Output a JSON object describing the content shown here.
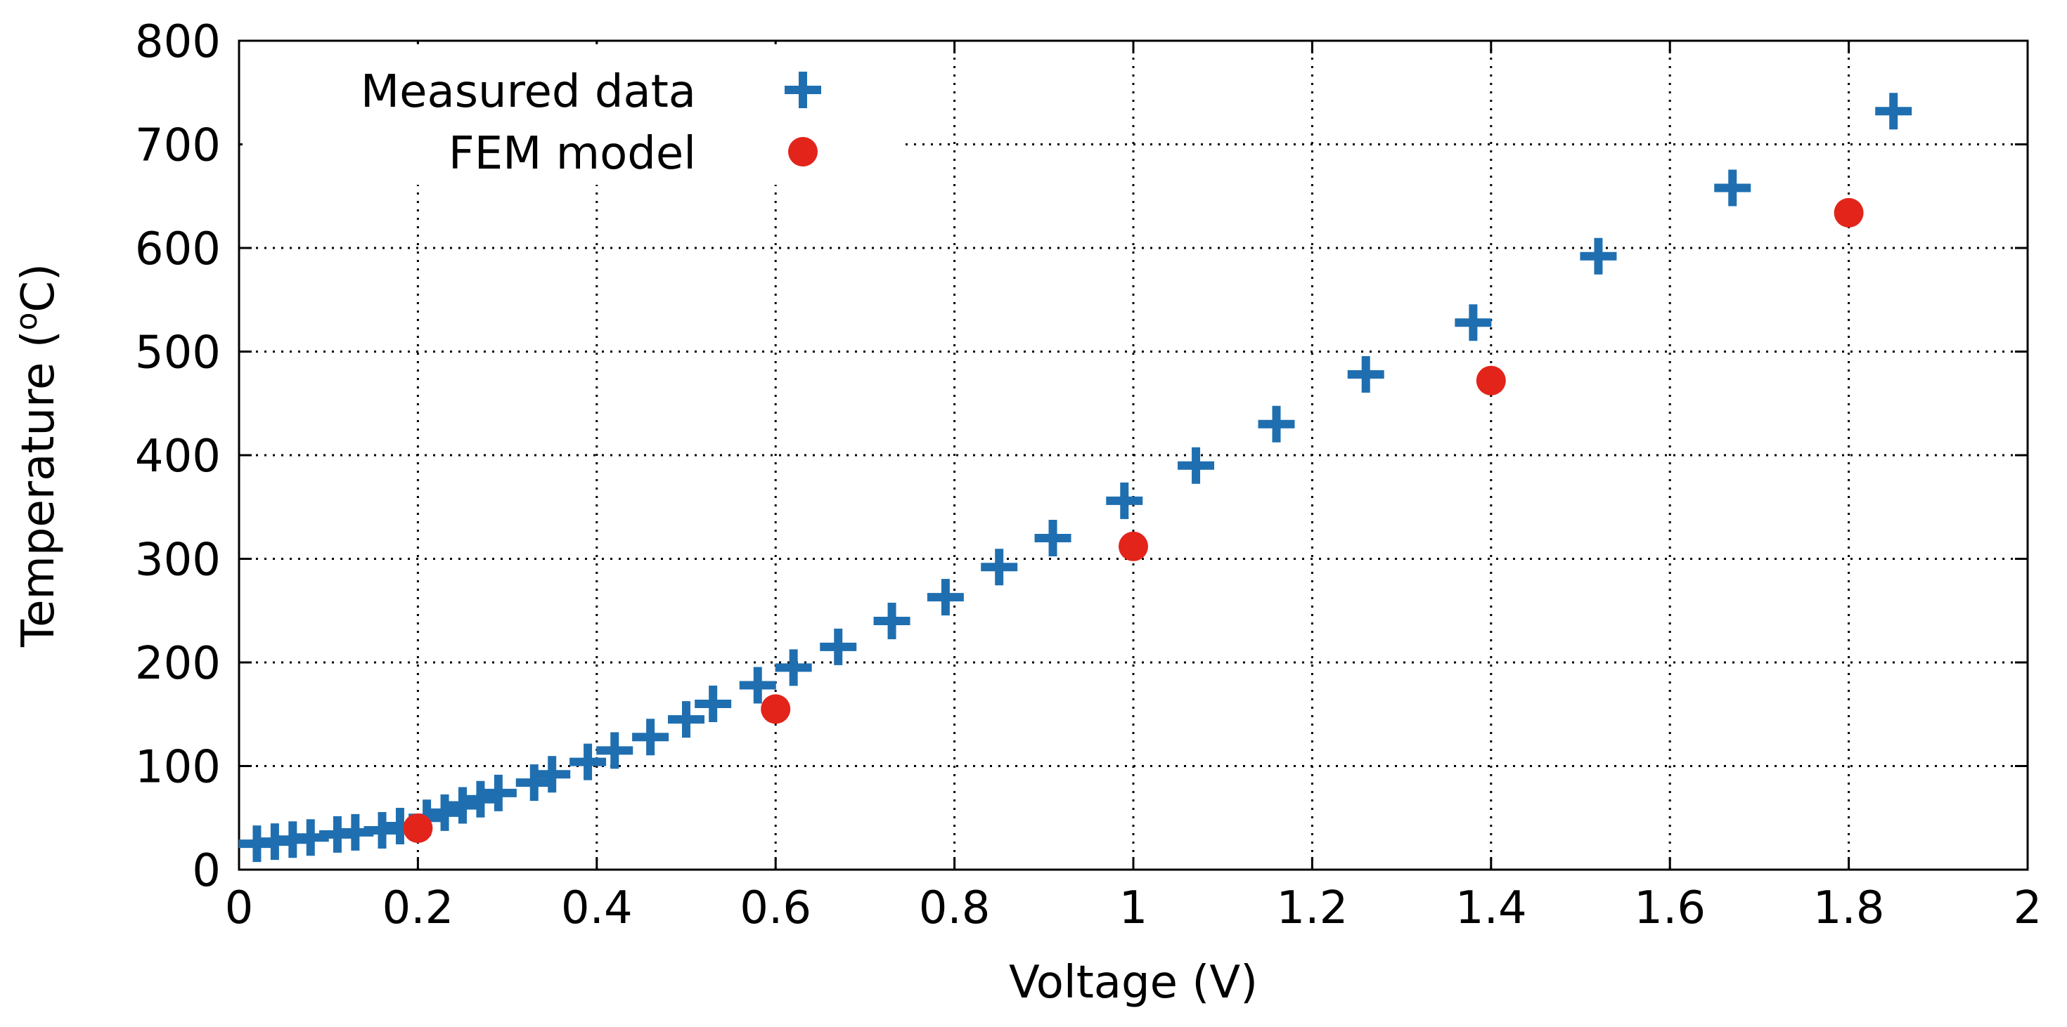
{
  "chart_data": {
    "type": "scatter",
    "title": "",
    "xlabel": "Voltage (V)",
    "ylabel_prefix": "Temperature (",
    "ylabel_superscript": "o",
    "ylabel_suffix": "C)",
    "xlim": [
      0,
      2
    ],
    "ylim": [
      0,
      800
    ],
    "grid": true,
    "x_ticks": [
      0,
      0.2,
      0.4,
      0.6,
      0.8,
      1,
      1.2,
      1.4,
      1.6,
      1.8,
      2
    ],
    "x_tick_labels": [
      "0",
      "0.2",
      "0.4",
      "0.6",
      "0.8",
      "1",
      "1.2",
      "1.4",
      "1.6",
      "1.8",
      "2"
    ],
    "y_ticks": [
      0,
      100,
      200,
      300,
      400,
      500,
      600,
      700,
      800
    ],
    "y_tick_labels": [
      "0",
      "100",
      "200",
      "300",
      "400",
      "500",
      "600",
      "700",
      "800"
    ],
    "legend_position": "top-left",
    "series": [
      {
        "name": "Measured data",
        "marker": "plus",
        "color": "#1f6fb0",
        "points": [
          [
            0.02,
            25
          ],
          [
            0.04,
            27
          ],
          [
            0.06,
            29
          ],
          [
            0.08,
            31
          ],
          [
            0.11,
            34
          ],
          [
            0.13,
            36
          ],
          [
            0.16,
            38
          ],
          [
            0.18,
            42
          ],
          [
            0.21,
            50
          ],
          [
            0.23,
            55
          ],
          [
            0.25,
            62
          ],
          [
            0.27,
            68
          ],
          [
            0.29,
            74
          ],
          [
            0.33,
            84
          ],
          [
            0.35,
            92
          ],
          [
            0.39,
            104
          ],
          [
            0.42,
            115
          ],
          [
            0.46,
            128
          ],
          [
            0.5,
            145
          ],
          [
            0.53,
            160
          ],
          [
            0.58,
            178
          ],
          [
            0.62,
            195
          ],
          [
            0.67,
            215
          ],
          [
            0.73,
            240
          ],
          [
            0.79,
            263
          ],
          [
            0.85,
            292
          ],
          [
            0.91,
            320
          ],
          [
            0.99,
            356
          ],
          [
            1.07,
            390
          ],
          [
            1.16,
            430
          ],
          [
            1.26,
            478
          ],
          [
            1.38,
            528
          ],
          [
            1.52,
            592
          ],
          [
            1.67,
            658
          ],
          [
            1.85,
            732
          ]
        ]
      },
      {
        "name": "FEM model",
        "marker": "circle",
        "color": "#e3241b",
        "points": [
          [
            0.2,
            40
          ],
          [
            0.6,
            155
          ],
          [
            1.0,
            312
          ],
          [
            1.4,
            472
          ],
          [
            1.8,
            634
          ]
        ]
      }
    ]
  }
}
